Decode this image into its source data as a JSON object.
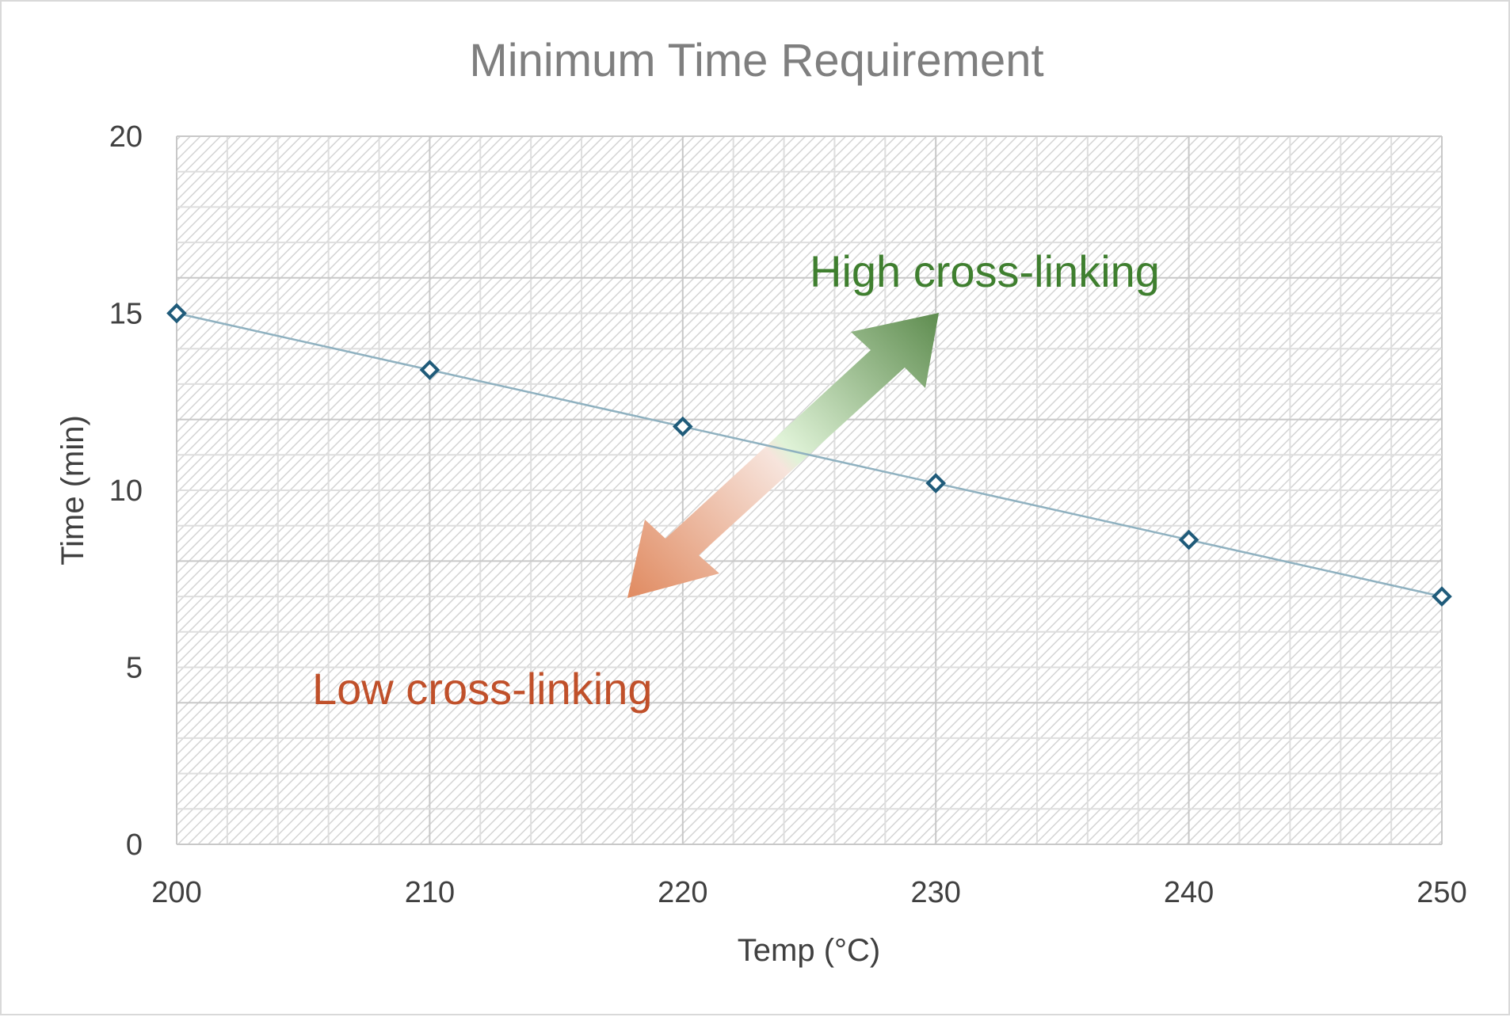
{
  "chart_data": {
    "type": "line",
    "title": "Minimum Time Requirement",
    "xlabel": "Temp (°C)",
    "ylabel": "Time (min)",
    "xlim": [
      200,
      250
    ],
    "ylim": [
      0,
      20
    ],
    "x_ticks": [
      "200",
      "210",
      "220",
      "230",
      "240",
      "250"
    ],
    "y_ticks": [
      "0",
      "5",
      "10",
      "15",
      "20"
    ],
    "x": [
      200,
      210,
      220,
      230,
      240,
      250
    ],
    "series": [
      {
        "values": [
          15,
          13.4,
          11.8,
          10.2,
          8.6,
          7.0
        ]
      }
    ],
    "grid": true,
    "legend": "none",
    "annotations": {
      "high": "High cross-linking",
      "low": "Low cross-linking"
    },
    "colors": {
      "series_line": "#8fb1c0",
      "marker_stroke": "#1f5b7a",
      "high_text": "#3f7f2f",
      "low_text": "#c0502a",
      "arrow_green": "#5e8c4f",
      "arrow_orange": "#e08a60"
    }
  }
}
